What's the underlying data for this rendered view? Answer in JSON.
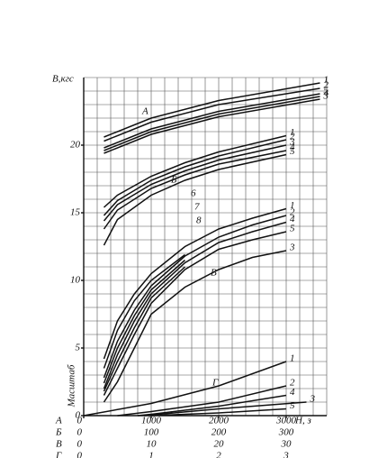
{
  "chart_data": {
    "type": "line",
    "y_label": "B,кгс",
    "x_label": "H, з",
    "scale_title": "Масштаб",
    "xlim": [
      0,
      3600
    ],
    "ylim": [
      0,
      25
    ],
    "xticks": [
      0,
      1000,
      2000,
      3000
    ],
    "yticks": [
      0,
      5,
      10,
      15,
      20
    ],
    "grid": true,
    "color": "#111111",
    "scales": [
      {
        "name": "А",
        "labels": [
          "0",
          "1000",
          "2000",
          "3000"
        ]
      },
      {
        "name": "Б",
        "labels": [
          "0",
          "100",
          "200",
          "300"
        ]
      },
      {
        "name": "В",
        "labels": [
          "0",
          "10",
          "20",
          "30"
        ]
      },
      {
        "name": "Г",
        "labels": [
          "0",
          "1",
          "2",
          "3"
        ]
      }
    ],
    "groups": [
      {
        "name": "А",
        "series": [
          {
            "name": "1",
            "x": [
              300,
              1000,
              2000,
              3500
            ],
            "values": [
              20.6,
              22.0,
              23.3,
              24.6
            ]
          },
          {
            "name": "2",
            "x": [
              300,
              1000,
              2000,
              3500
            ],
            "values": [
              20.3,
              21.7,
              23.0,
              24.2
            ]
          },
          {
            "name": "5",
            "x": [
              300,
              1000,
              2000,
              3500
            ],
            "values": [
              19.8,
              21.2,
              22.5,
              23.8
            ]
          },
          {
            "name": "4",
            "x": [
              300,
              1000,
              2000,
              3500
            ],
            "values": [
              19.6,
              21.0,
              22.3,
              23.6
            ]
          },
          {
            "name": "3",
            "x": [
              300,
              1000,
              2000,
              3500
            ],
            "values": [
              19.4,
              20.8,
              22.1,
              23.4
            ]
          }
        ]
      },
      {
        "name": "Б",
        "series": [
          {
            "name": "1",
            "x": [
              300,
              500,
              1000,
              1500,
              2000,
              3000
            ],
            "values": [
              15.4,
              16.3,
              17.7,
              18.7,
              19.5,
              20.7
            ]
          },
          {
            "name": "2",
            "x": [
              300,
              500,
              1000,
              1500,
              2000,
              3000
            ],
            "values": [
              14.8,
              15.9,
              17.4,
              18.4,
              19.2,
              20.4
            ]
          },
          {
            "name": "3",
            "x": [
              300,
              500,
              1000,
              1500,
              2000,
              3000
            ],
            "values": [
              14.4,
              15.6,
              17.1,
              18.1,
              18.9,
              20.0
            ]
          },
          {
            "name": "4",
            "x": [
              300,
              500,
              1000,
              1500,
              2000,
              3000
            ],
            "values": [
              13.8,
              15.2,
              16.8,
              17.8,
              18.6,
              19.6
            ]
          },
          {
            "name": "5",
            "x": [
              300,
              500,
              1000,
              1500,
              2000,
              3000
            ],
            "values": [
              12.6,
              14.5,
              16.3,
              17.4,
              18.2,
              19.3
            ]
          }
        ]
      },
      {
        "name": "В",
        "series": [
          {
            "name": "1",
            "x": [
              300,
              500,
              750,
              1000,
              1500,
              2000,
              2500,
              3000
            ],
            "values": [
              4.2,
              7.0,
              9.0,
              10.5,
              12.5,
              13.8,
              14.6,
              15.3
            ]
          },
          {
            "name": "2",
            "x": [
              300,
              500,
              750,
              1000,
              1500,
              2000,
              2500,
              3000
            ],
            "values": [
              2.8,
              5.5,
              7.8,
              9.6,
              11.8,
              13.2,
              14.1,
              14.8
            ]
          },
          {
            "name": "4",
            "x": [
              300,
              500,
              750,
              1000,
              1500,
              2000,
              2500,
              3000
            ],
            "values": [
              2.0,
              4.5,
              7.0,
              9.0,
              11.3,
              12.8,
              13.6,
              14.3
            ]
          },
          {
            "name": "5",
            "x": [
              300,
              500,
              750,
              1000,
              1500,
              2000,
              2500,
              3000
            ],
            "values": [
              1.5,
              3.5,
              6.0,
              8.3,
              10.8,
              12.3,
              13.0,
              13.6
            ]
          },
          {
            "name": "3",
            "x": [
              300,
              500,
              750,
              1000,
              1500,
              2000,
              2500,
              3000
            ],
            "values": [
              1.0,
              2.5,
              5.0,
              7.5,
              9.5,
              10.8,
              11.7,
              12.2
            ]
          },
          {
            "name": "6",
            "x": [
              300,
              500,
              750,
              1000,
              1500
            ],
            "values": [
              3.5,
              6.3,
              8.5,
              10.0,
              11.9
            ]
          },
          {
            "name": "7",
            "x": [
              300,
              500,
              750,
              1000,
              1500
            ],
            "values": [
              2.4,
              5.0,
              7.4,
              9.3,
              11.5
            ]
          },
          {
            "name": "8",
            "x": [
              300,
              500,
              750,
              1000,
              1500
            ],
            "values": [
              1.8,
              4.0,
              6.5,
              8.7,
              11.0
            ]
          }
        ]
      },
      {
        "name": "Г",
        "series": [
          {
            "name": "1",
            "x": [
              0,
              1000,
              2000,
              3000
            ],
            "values": [
              0,
              0.9,
              2.2,
              4.0
            ]
          },
          {
            "name": "2",
            "x": [
              500,
              1000,
              2000,
              3000
            ],
            "values": [
              0,
              0.3,
              1.0,
              2.2
            ]
          },
          {
            "name": "4",
            "x": [
              800,
              1000,
              2000,
              3000
            ],
            "values": [
              0,
              0.1,
              0.7,
              1.5
            ]
          },
          {
            "name": "3",
            "x": [
              900,
              1000,
              2000,
              3300
            ],
            "values": [
              0,
              0.05,
              0.5,
              1.0
            ]
          },
          {
            "name": "5",
            "x": [
              1000,
              2000,
              3000
            ],
            "values": [
              0,
              0.2,
              0.5
            ]
          }
        ]
      }
    ]
  }
}
